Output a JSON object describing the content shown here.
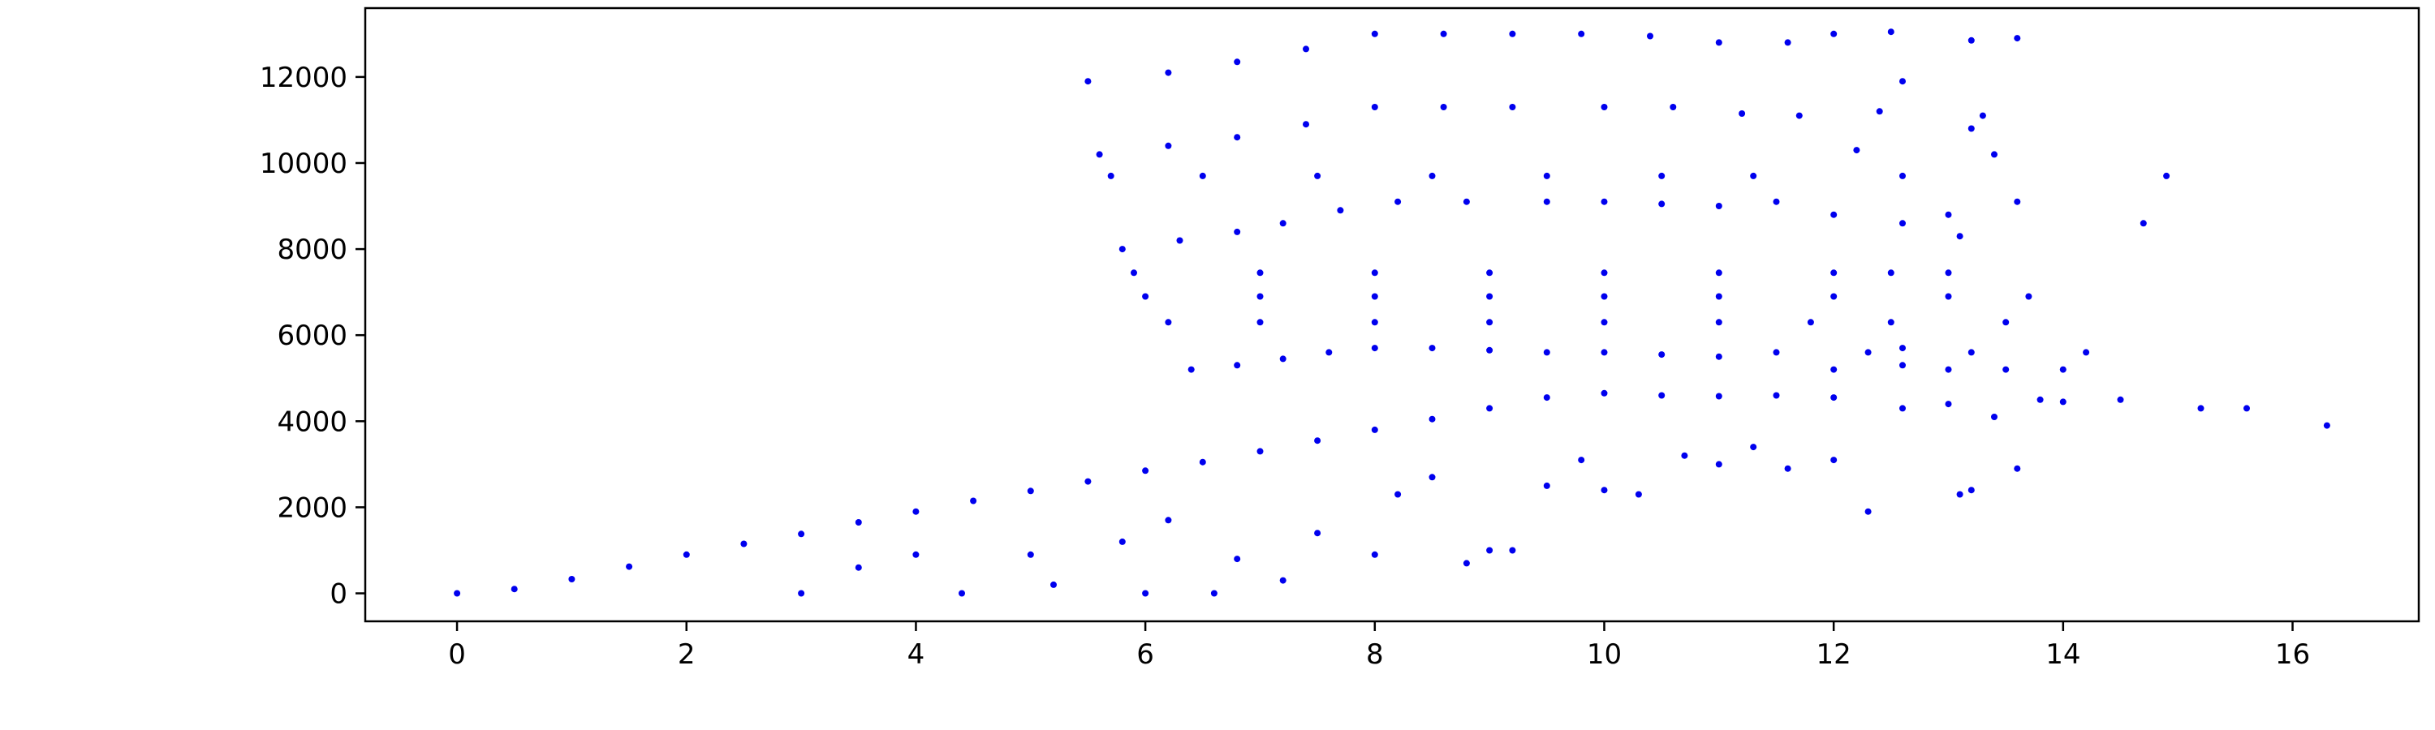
{
  "chart_data": {
    "type": "scatter",
    "title": "",
    "xlabel": "",
    "ylabel": "",
    "xlim": [
      -0.8,
      17.1
    ],
    "ylim": [
      -650,
      13600
    ],
    "grid": false,
    "legend": null,
    "marker_color": "#0000ee",
    "x_ticks": [
      0,
      2,
      4,
      6,
      8,
      10,
      12,
      14,
      16
    ],
    "x_tick_labels": [
      "0",
      "2",
      "4",
      "6",
      "8",
      "10",
      "12",
      "14",
      "16"
    ],
    "y_ticks": [
      0,
      2000,
      4000,
      6000,
      8000,
      10000,
      12000
    ],
    "y_tick_labels": [
      "0",
      "2000",
      "4000",
      "6000",
      "8000",
      "10000",
      "12000"
    ],
    "series": [
      {
        "values": [
          [
            0.0,
            0
          ],
          [
            0.5,
            100
          ],
          [
            1.0,
            330
          ],
          [
            1.5,
            620
          ],
          [
            2.0,
            900
          ],
          [
            2.5,
            1150
          ],
          [
            3.0,
            1380
          ],
          [
            3.5,
            1650
          ],
          [
            4.0,
            1900
          ],
          [
            4.5,
            2150
          ],
          [
            5.0,
            2380
          ],
          [
            5.5,
            2600
          ],
          [
            6.0,
            2850
          ],
          [
            6.5,
            3050
          ],
          [
            7.0,
            3300
          ],
          [
            7.5,
            3550
          ],
          [
            8.0,
            3800
          ],
          [
            8.5,
            4050
          ],
          [
            9.0,
            4300
          ],
          [
            9.5,
            4550
          ],
          [
            10.0,
            4650
          ],
          [
            10.5,
            4600
          ],
          [
            11.0,
            4580
          ],
          [
            11.5,
            4600
          ],
          [
            12.0,
            4550
          ],
          [
            3.0,
            0
          ],
          [
            3.5,
            600
          ],
          [
            4.0,
            900
          ],
          [
            4.4,
            0
          ],
          [
            5.0,
            900
          ],
          [
            5.2,
            200
          ],
          [
            5.8,
            1200
          ],
          [
            6.0,
            0
          ],
          [
            6.2,
            1700
          ],
          [
            6.6,
            0
          ],
          [
            6.8,
            800
          ],
          [
            7.2,
            300
          ],
          [
            7.5,
            1400
          ],
          [
            8.0,
            900
          ],
          [
            8.2,
            2300
          ],
          [
            8.5,
            2700
          ],
          [
            8.8,
            700
          ],
          [
            9.0,
            1000
          ],
          [
            9.2,
            1000
          ],
          [
            9.5,
            2500
          ],
          [
            9.8,
            3100
          ],
          [
            10.0,
            2400
          ],
          [
            10.3,
            2300
          ],
          [
            10.7,
            3200
          ],
          [
            11.0,
            3000
          ],
          [
            11.3,
            3400
          ],
          [
            11.6,
            2900
          ],
          [
            12.0,
            3100
          ],
          [
            12.3,
            1900
          ],
          [
            12.6,
            4300
          ],
          [
            13.0,
            4400
          ],
          [
            13.1,
            2300
          ],
          [
            13.2,
            2400
          ],
          [
            13.4,
            4100
          ],
          [
            13.6,
            2900
          ],
          [
            13.8,
            4500
          ],
          [
            14.0,
            4450
          ],
          [
            14.5,
            4500
          ],
          [
            15.2,
            4300
          ],
          [
            15.6,
            4300
          ],
          [
            16.3,
            3900
          ]
        ]
      },
      {
        "values": [
          [
            6.4,
            5200
          ],
          [
            6.8,
            5300
          ],
          [
            7.2,
            5450
          ],
          [
            7.6,
            5600
          ],
          [
            8.0,
            5700
          ],
          [
            8.5,
            5700
          ],
          [
            9.0,
            5650
          ],
          [
            9.5,
            5600
          ],
          [
            10.0,
            5600
          ],
          [
            10.5,
            5550
          ],
          [
            11.0,
            5500
          ],
          [
            11.5,
            5600
          ],
          [
            12.0,
            5200
          ],
          [
            12.3,
            5600
          ],
          [
            12.6,
            5300
          ],
          [
            13.0,
            5200
          ],
          [
            13.5,
            5200
          ],
          [
            14.2,
            5600
          ]
        ]
      },
      {
        "values": [
          [
            6.2,
            6300
          ],
          [
            7.0,
            6300
          ],
          [
            8.0,
            6300
          ],
          [
            9.0,
            6300
          ],
          [
            10.0,
            6300
          ],
          [
            11.0,
            6300
          ],
          [
            11.8,
            6300
          ],
          [
            12.5,
            6300
          ],
          [
            13.5,
            6300
          ],
          [
            12.6,
            5700
          ],
          [
            13.2,
            5600
          ],
          [
            14.0,
            5200
          ]
        ]
      },
      {
        "values": [
          [
            6.0,
            6900
          ],
          [
            7.0,
            6900
          ],
          [
            8.0,
            6900
          ],
          [
            9.0,
            6900
          ],
          [
            10.0,
            6900
          ],
          [
            11.0,
            6900
          ],
          [
            12.0,
            6900
          ],
          [
            13.0,
            6900
          ],
          [
            13.7,
            6900
          ]
        ]
      },
      {
        "values": [
          [
            5.9,
            7450
          ],
          [
            7.0,
            7450
          ],
          [
            8.0,
            7450
          ],
          [
            9.0,
            7450
          ],
          [
            10.0,
            7450
          ],
          [
            11.0,
            7450
          ],
          [
            12.0,
            7450
          ],
          [
            12.5,
            7450
          ],
          [
            13.0,
            7450
          ],
          [
            13.1,
            8300
          ]
        ]
      },
      {
        "values": [
          [
            5.8,
            8000
          ],
          [
            6.3,
            8200
          ],
          [
            6.8,
            8400
          ],
          [
            7.2,
            8600
          ],
          [
            7.7,
            8900
          ],
          [
            8.2,
            9100
          ],
          [
            8.8,
            9100
          ],
          [
            9.5,
            9100
          ],
          [
            10.0,
            9100
          ],
          [
            10.5,
            9050
          ],
          [
            11.0,
            9000
          ],
          [
            11.5,
            9100
          ],
          [
            12.0,
            8800
          ],
          [
            12.6,
            8600
          ],
          [
            13.0,
            8800
          ],
          [
            13.6,
            9100
          ],
          [
            14.7,
            8600
          ]
        ]
      },
      {
        "values": [
          [
            5.7,
            9700
          ],
          [
            6.5,
            9700
          ],
          [
            7.5,
            9700
          ],
          [
            8.5,
            9700
          ],
          [
            9.5,
            9700
          ],
          [
            10.5,
            9700
          ],
          [
            11.3,
            9700
          ],
          [
            12.6,
            9700
          ],
          [
            14.9,
            9700
          ]
        ]
      },
      {
        "values": [
          [
            5.6,
            10200
          ],
          [
            6.2,
            10400
          ],
          [
            6.8,
            10600
          ],
          [
            7.4,
            10900
          ],
          [
            8.0,
            11300
          ],
          [
            8.6,
            11300
          ],
          [
            9.2,
            11300
          ],
          [
            10.0,
            11300
          ],
          [
            10.6,
            11300
          ],
          [
            11.2,
            11150
          ],
          [
            11.7,
            11100
          ],
          [
            12.2,
            10300
          ],
          [
            12.4,
            11200
          ],
          [
            13.2,
            10800
          ],
          [
            13.3,
            11100
          ],
          [
            13.4,
            10200
          ]
        ]
      },
      {
        "values": [
          [
            5.5,
            11900
          ],
          [
            6.2,
            12100
          ],
          [
            6.8,
            12350
          ],
          [
            7.4,
            12650
          ],
          [
            8.0,
            13000
          ],
          [
            8.6,
            13000
          ],
          [
            9.2,
            13000
          ],
          [
            9.8,
            13000
          ],
          [
            10.4,
            12950
          ],
          [
            11.0,
            12800
          ],
          [
            11.6,
            12800
          ],
          [
            12.0,
            13000
          ],
          [
            12.5,
            13050
          ],
          [
            12.6,
            11900
          ],
          [
            13.2,
            12850
          ],
          [
            13.6,
            12900
          ]
        ]
      }
    ]
  }
}
